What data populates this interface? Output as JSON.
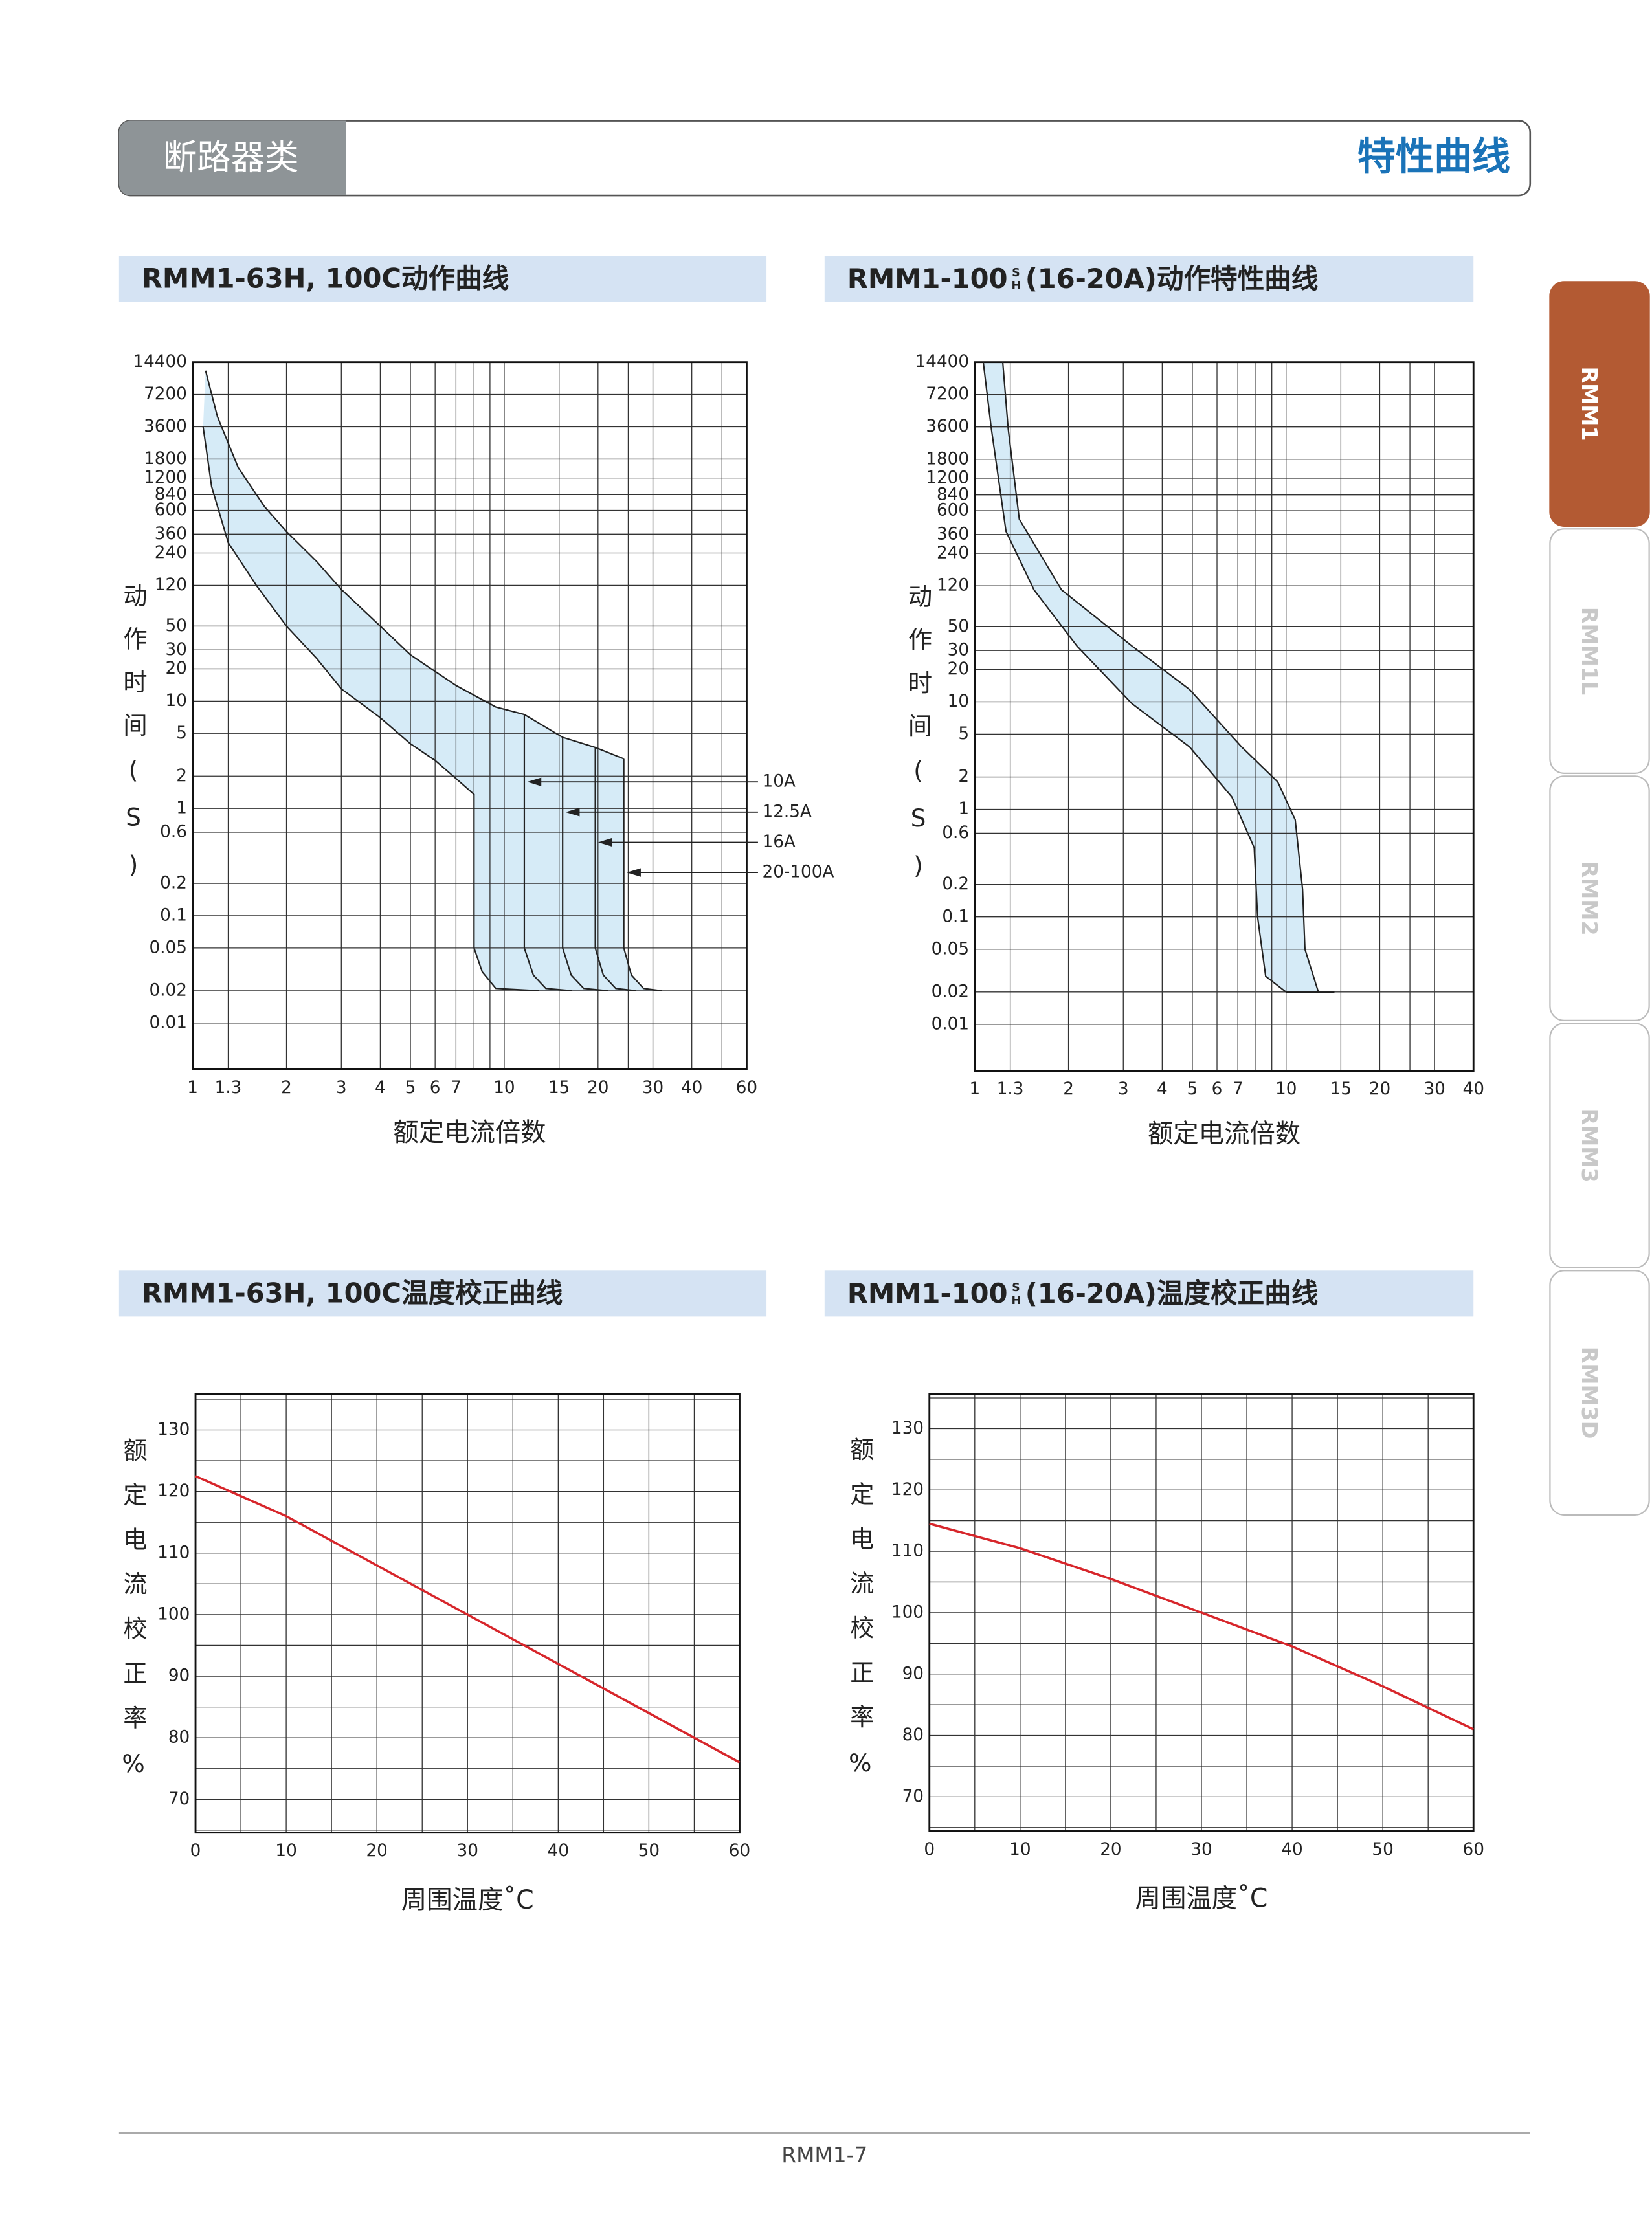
{
  "header": {
    "category": "断路器类",
    "section": "特性曲线"
  },
  "tabs": [
    "RMM1",
    "RMM1L",
    "RMM2",
    "RMM3",
    "RMM3D"
  ],
  "footer": {
    "page": "RMM1-7"
  },
  "chart_data": [
    {
      "type": "line",
      "title": "RMM1-63H, 100C动作曲线",
      "xlabel": "额定电流倍数",
      "ylabel": "动作时间(S)",
      "xscale": "log",
      "yscale": "log",
      "grid": true,
      "band_color": "#d6ebf7",
      "xlim": [
        1,
        60
      ],
      "xticks": [
        1,
        1.3,
        2,
        3,
        4,
        5,
        6,
        7,
        10,
        15,
        20,
        30,
        40,
        60
      ],
      "xminorticks": [
        8,
        9,
        25,
        50
      ],
      "ylim": [
        0.0037,
        14400
      ],
      "yticks": [
        14400,
        7200,
        3600,
        1800,
        1200,
        840,
        600,
        360,
        240,
        120,
        50,
        30,
        20,
        10,
        5,
        2,
        1,
        0.6,
        0.2,
        0.1,
        0.05,
        0.02,
        0.01
      ],
      "series": [
        {
          "color": "#222222",
          "x": [
            1.1,
            1.2,
            1.4,
            1.7,
            2,
            2.5,
            3,
            4,
            5,
            7,
            9.4,
            11.6,
            15.4,
            19.6,
            24.2
          ],
          "values": [
            12000,
            4500,
            1500,
            650,
            380,
            200,
            110,
            50,
            27,
            14,
            8.8,
            7.5,
            4.6,
            3.7,
            2.9
          ]
        },
        {
          "color": "#222222",
          "x": [
            1.08,
            1.15,
            1.3,
            1.6,
            2,
            2.5,
            3,
            4,
            5,
            6,
            7,
            8,
            8,
            8.5,
            9.4,
            12.9
          ],
          "values": [
            3600,
            1000,
            300,
            120,
            50,
            25,
            13,
            7,
            4,
            2.8,
            1.9,
            1.35,
            0.05,
            0.03,
            0.021,
            0.02
          ]
        },
        {
          "name": "10A",
          "color": "#222222",
          "x": [
            11.6,
            11.6,
            12.4,
            13.6,
            16.5
          ],
          "values": [
            7.5,
            0.05,
            0.028,
            0.021,
            0.02
          ]
        },
        {
          "name": "12.5A",
          "color": "#222222",
          "x": [
            15.4,
            15.4,
            16.4,
            18,
            21.5
          ],
          "values": [
            4.6,
            0.05,
            0.028,
            0.021,
            0.02
          ]
        },
        {
          "name": "16A",
          "color": "#222222",
          "x": [
            19.6,
            19.6,
            20.8,
            22.8,
            26.5
          ],
          "values": [
            3.7,
            0.05,
            0.028,
            0.021,
            0.02
          ]
        },
        {
          "name": "20-100A",
          "color": "#222222",
          "x": [
            24.2,
            24.2,
            25.6,
            28,
            32
          ],
          "values": [
            2.9,
            0.05,
            0.028,
            0.021,
            0.02
          ]
        }
      ]
    },
    {
      "type": "line",
      "title": "RMM1-100",
      "title_marks": [
        "S",
        "H"
      ],
      "title_rest": "(16-20A)动作特性曲线",
      "xlabel": "额定电流倍数",
      "ylabel": "动作时间(S)",
      "xscale": "log",
      "yscale": "log",
      "grid": true,
      "band_color": "#d6ebf7",
      "xlim": [
        1,
        40
      ],
      "xticks": [
        1,
        1.3,
        2,
        3,
        4,
        5,
        6,
        7,
        10,
        15,
        20,
        30,
        40
      ],
      "xminorticks": [
        8,
        9,
        25
      ],
      "ylim": [
        0.0037,
        14400
      ],
      "yticks": [
        14400,
        7200,
        3600,
        1800,
        1200,
        840,
        600,
        360,
        240,
        120,
        50,
        30,
        20,
        10,
        5,
        2,
        1,
        0.6,
        0.2,
        0.1,
        0.05,
        0.02,
        0.01
      ],
      "series": [
        {
          "color": "#222222",
          "x": [
            1.23,
            1.28,
            1.39,
            1.9,
            3.2,
            4.9,
            7.2,
            9.4,
            10.7,
            11.3,
            11.5,
            12.7,
            14.3
          ],
          "values": [
            14400,
            3500,
            500,
            110,
            33,
            13,
            3.8,
            1.8,
            0.8,
            0.18,
            0.05,
            0.02,
            0.02
          ]
        },
        {
          "color": "#222222",
          "x": [
            1.065,
            1.13,
            1.26,
            1.55,
            2.13,
            3.2,
            4.9,
            6.7,
            7.9,
            8.1,
            8.6,
            10,
            14.3
          ],
          "values": [
            14400,
            3500,
            385,
            110,
            33,
            9.6,
            3.8,
            1.3,
            0.44,
            0.1,
            0.028,
            0.02,
            0.02
          ]
        }
      ]
    },
    {
      "type": "line",
      "title": "RMM1-63H, 100C温度校正曲线",
      "xlabel": "周围温度˚C",
      "ylabel": "额定电流校正率%",
      "xscale": "linear",
      "yscale": "linear",
      "grid": true,
      "xlim": [
        0,
        60
      ],
      "xticks": [
        0,
        10,
        20,
        30,
        40,
        50,
        60
      ],
      "xminorticks": [
        5,
        15,
        25,
        35,
        45,
        55
      ],
      "ylim": [
        64.6,
        135.8
      ],
      "yticks": [
        70,
        80,
        90,
        100,
        110,
        120,
        130
      ],
      "yminorticks": [
        65,
        75,
        85,
        95,
        105,
        115,
        125,
        135
      ],
      "series": [
        {
          "color": "#d7262b",
          "x": [
            0,
            10,
            20,
            30,
            40,
            50,
            60
          ],
          "values": [
            122.5,
            116,
            108,
            100,
            92,
            84,
            76
          ]
        }
      ]
    },
    {
      "type": "line",
      "title": "RMM1-100",
      "title_marks": [
        "S",
        "H"
      ],
      "title_rest": "(16-20A)温度校正曲线",
      "xlabel": "周围温度˚C",
      "ylabel": "额定电流校正率%",
      "xscale": "linear",
      "yscale": "linear",
      "grid": true,
      "xlim": [
        0,
        60
      ],
      "xticks": [
        0,
        10,
        20,
        30,
        40,
        50,
        60
      ],
      "xminorticks": [
        5,
        15,
        25,
        35,
        45,
        55
      ],
      "ylim": [
        64.4,
        135.6
      ],
      "yticks": [
        70,
        80,
        90,
        100,
        110,
        120,
        130
      ],
      "yminorticks": [
        65,
        75,
        85,
        95,
        105,
        115,
        125,
        135
      ],
      "series": [
        {
          "color": "#d7262b",
          "x": [
            0,
            10,
            20,
            30,
            40,
            50,
            60
          ],
          "values": [
            114.5,
            110.5,
            105.5,
            100,
            94.5,
            88,
            81
          ]
        }
      ]
    }
  ]
}
